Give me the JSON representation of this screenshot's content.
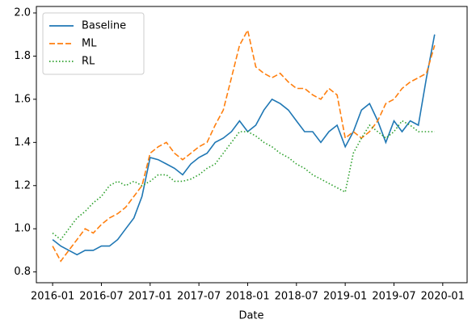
{
  "chart_data": {
    "type": "line",
    "x_label": "Date",
    "x": [
      "2016-01",
      "2016-02",
      "2016-03",
      "2016-04",
      "2016-05",
      "2016-06",
      "2016-07",
      "2016-08",
      "2016-09",
      "2016-10",
      "2016-11",
      "2016-12",
      "2017-01",
      "2017-02",
      "2017-03",
      "2017-04",
      "2017-05",
      "2017-06",
      "2017-07",
      "2017-08",
      "2017-09",
      "2017-10",
      "2017-11",
      "2017-12",
      "2018-01",
      "2018-02",
      "2018-03",
      "2018-04",
      "2018-05",
      "2018-06",
      "2018-07",
      "2018-08",
      "2018-09",
      "2018-10",
      "2018-11",
      "2018-12",
      "2019-01",
      "2019-02",
      "2019-03",
      "2019-04",
      "2019-05",
      "2019-06",
      "2019-07",
      "2019-08",
      "2019-09",
      "2019-10",
      "2019-11",
      "2019-12"
    ],
    "series": [
      {
        "name": "Baseline",
        "color": "#1f77b4",
        "dash": "solid",
        "values": [
          0.95,
          0.92,
          0.9,
          0.88,
          0.9,
          0.9,
          0.92,
          0.92,
          0.95,
          1.0,
          1.05,
          1.15,
          1.33,
          1.32,
          1.3,
          1.28,
          1.25,
          1.3,
          1.33,
          1.35,
          1.4,
          1.42,
          1.45,
          1.5,
          1.45,
          1.48,
          1.55,
          1.6,
          1.58,
          1.55,
          1.5,
          1.45,
          1.45,
          1.4,
          1.45,
          1.48,
          1.38,
          1.45,
          1.55,
          1.58,
          1.5,
          1.4,
          1.5,
          1.45,
          1.5,
          1.48,
          1.7,
          1.9
        ]
      },
      {
        "name": "ML",
        "color": "#ff7f0e",
        "dash": "dashed",
        "values": [
          0.92,
          0.85,
          0.9,
          0.95,
          1.0,
          0.98,
          1.02,
          1.05,
          1.07,
          1.1,
          1.15,
          1.2,
          1.35,
          1.38,
          1.4,
          1.35,
          1.32,
          1.35,
          1.38,
          1.4,
          1.48,
          1.55,
          1.7,
          1.85,
          1.92,
          1.75,
          1.72,
          1.7,
          1.72,
          1.68,
          1.65,
          1.65,
          1.62,
          1.6,
          1.65,
          1.62,
          1.42,
          1.45,
          1.42,
          1.45,
          1.5,
          1.58,
          1.6,
          1.65,
          1.68,
          1.7,
          1.72,
          1.85
        ]
      },
      {
        "name": "RL",
        "color": "#2ca02c",
        "dash": "dotted",
        "values": [
          0.98,
          0.95,
          1.0,
          1.05,
          1.08,
          1.12,
          1.15,
          1.2,
          1.22,
          1.2,
          1.22,
          1.2,
          1.22,
          1.25,
          1.25,
          1.22,
          1.22,
          1.23,
          1.25,
          1.28,
          1.3,
          1.35,
          1.4,
          1.45,
          1.45,
          1.43,
          1.4,
          1.38,
          1.35,
          1.33,
          1.3,
          1.28,
          1.25,
          1.23,
          1.21,
          1.19,
          1.17,
          1.35,
          1.42,
          1.48,
          1.45,
          1.42,
          1.45,
          1.5,
          1.48,
          1.45,
          1.45,
          1.45
        ]
      }
    ],
    "xlim": [
      "2015-11",
      "2020-04"
    ],
    "xticks": [
      "2016-01",
      "2016-07",
      "2017-01",
      "2017-07",
      "2018-01",
      "2018-07",
      "2019-01",
      "2019-07",
      "2020-01"
    ],
    "ylim": [
      0.75,
      2.03
    ],
    "yticks": [
      0.8,
      {
        "value": 1,
        "label": "1.0"
      },
      1.2,
      1.4,
      1.6,
      1.8,
      {
        "value": 2,
        "label": "2.0"
      }
    ],
    "grid": false,
    "legend": "upper left"
  }
}
